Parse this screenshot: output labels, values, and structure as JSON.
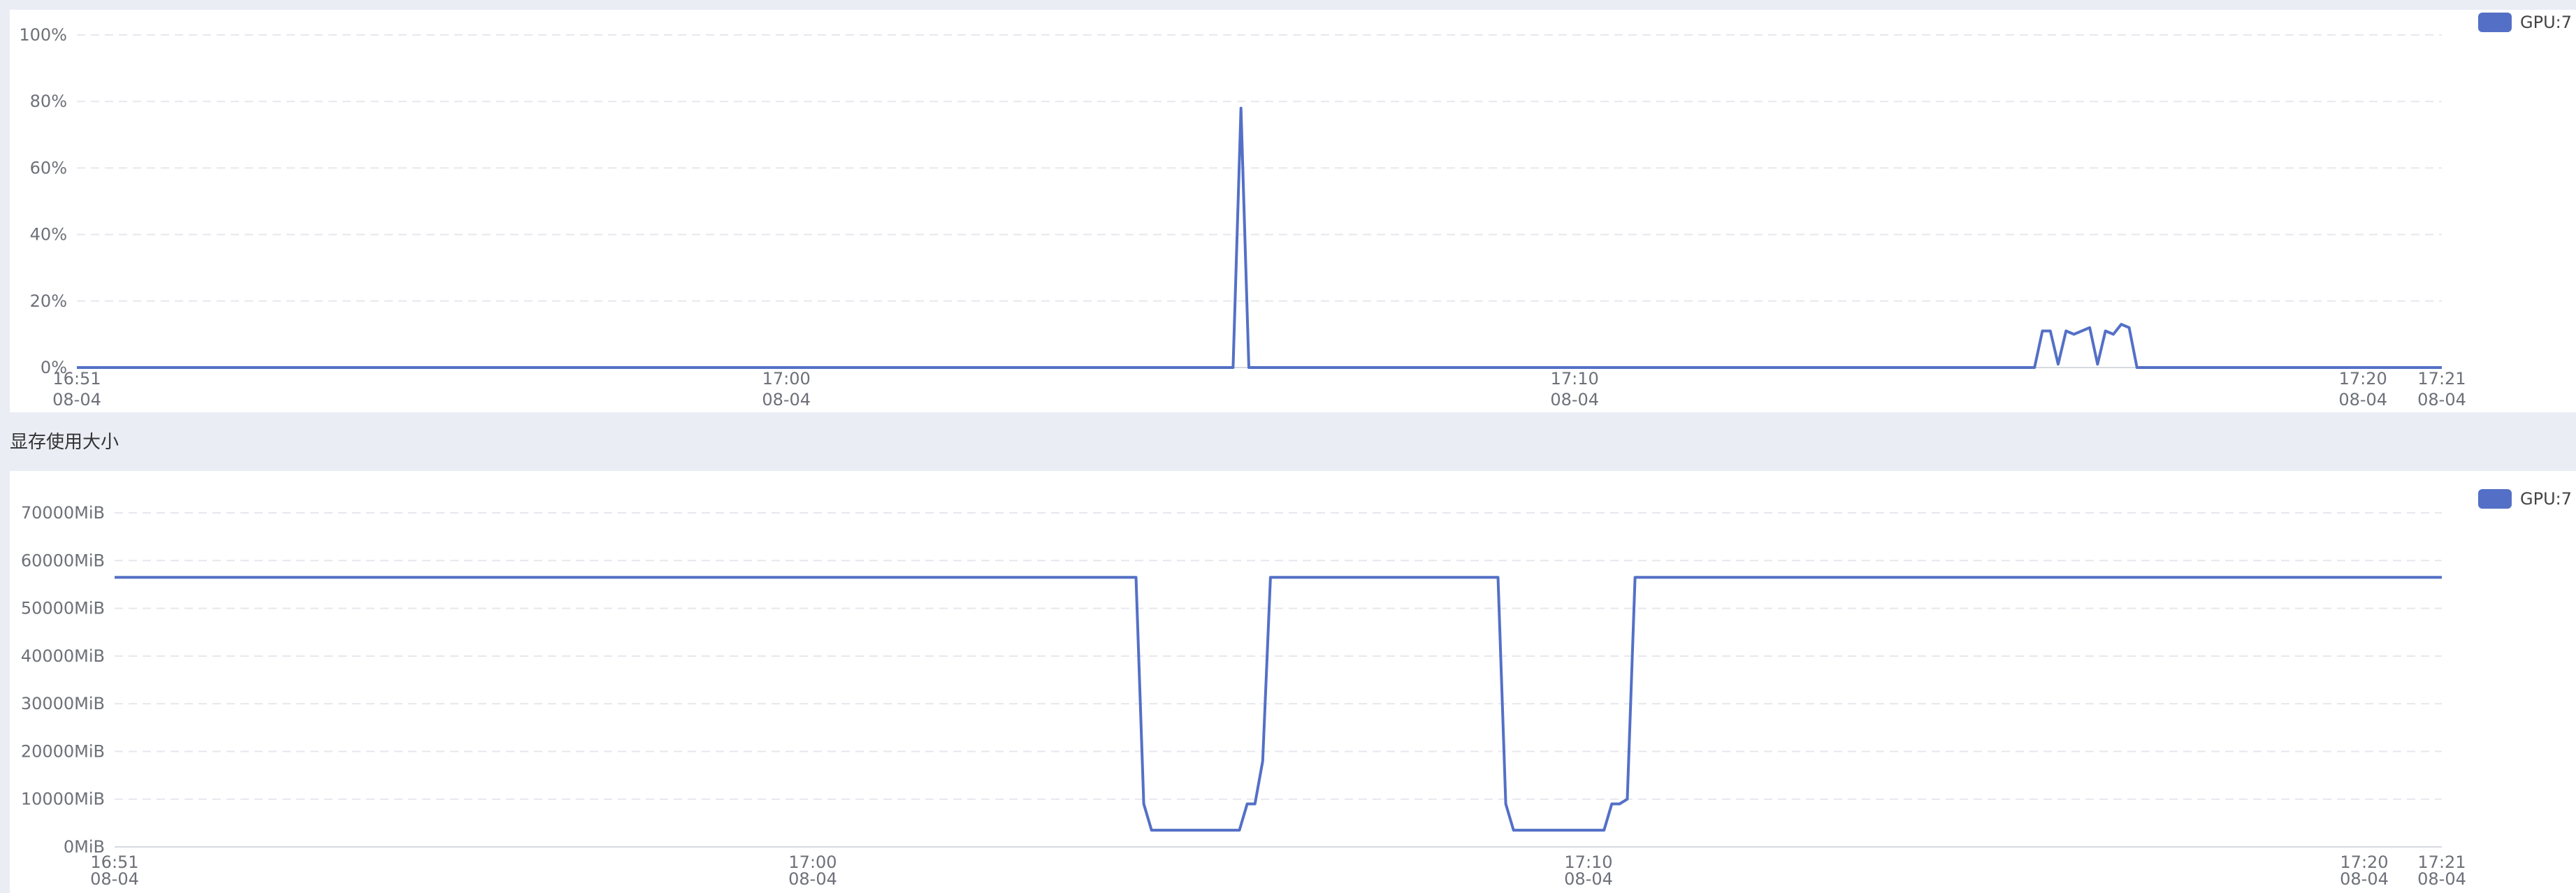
{
  "section_title": "显存使用大小",
  "chart_data": [
    {
      "type": "line",
      "yticks": [
        "0%",
        "20%",
        "40%",
        "60%",
        "80%",
        "100%"
      ],
      "ylim": [
        0,
        100
      ],
      "xlim": [
        "16:51",
        "17:21"
      ],
      "xticks": [
        {
          "time": "16:51",
          "date": "08-04"
        },
        {
          "time": "17:00",
          "date": "08-04"
        },
        {
          "time": "17:10",
          "date": "08-04"
        },
        {
          "time": "17:20",
          "date": "08-04"
        },
        {
          "time": "17:21",
          "date": "08-04"
        }
      ],
      "grid": true,
      "legend_position": "top-right",
      "series": [
        {
          "name": "GPU:7",
          "color": "#5470c6",
          "points": [
            [
              "16:51:00",
              0
            ],
            [
              "17:05:40",
              0
            ],
            [
              "17:05:46",
              78
            ],
            [
              "17:05:52",
              0
            ],
            [
              "17:15:50",
              0
            ],
            [
              "17:15:56",
              11
            ],
            [
              "17:16:02",
              11
            ],
            [
              "17:16:08",
              1
            ],
            [
              "17:16:14",
              11
            ],
            [
              "17:16:20",
              10
            ],
            [
              "17:16:26",
              11
            ],
            [
              "17:16:32",
              12
            ],
            [
              "17:16:38",
              1
            ],
            [
              "17:16:44",
              11
            ],
            [
              "17:16:50",
              10
            ],
            [
              "17:16:56",
              13
            ],
            [
              "17:17:02",
              12
            ],
            [
              "17:17:08",
              0
            ],
            [
              "17:21:00",
              0
            ]
          ]
        }
      ]
    },
    {
      "type": "line",
      "yticks": [
        "0MiB",
        "10000MiB",
        "20000MiB",
        "30000MiB",
        "40000MiB",
        "50000MiB",
        "60000MiB",
        "70000MiB"
      ],
      "ylim": [
        0,
        70000
      ],
      "xlim": [
        "16:51",
        "17:21"
      ],
      "xticks": [
        {
          "time": "16:51",
          "date": "08-04"
        },
        {
          "time": "17:00",
          "date": "08-04"
        },
        {
          "time": "17:10",
          "date": "08-04"
        },
        {
          "time": "17:20",
          "date": "08-04"
        },
        {
          "time": "17:21",
          "date": "08-04"
        }
      ],
      "grid": true,
      "legend_position": "top-right",
      "series": [
        {
          "name": "GPU:7",
          "color": "#5470c6",
          "points": [
            [
              "16:51:00",
              56500
            ],
            [
              "17:04:10",
              56500
            ],
            [
              "17:04:16",
              9000
            ],
            [
              "17:04:22",
              3500
            ],
            [
              "17:05:30",
              3500
            ],
            [
              "17:05:36",
              9000
            ],
            [
              "17:05:42",
              9000
            ],
            [
              "17:05:48",
              18000
            ],
            [
              "17:05:54",
              56500
            ],
            [
              "17:08:50",
              56500
            ],
            [
              "17:08:56",
              9000
            ],
            [
              "17:09:02",
              3500
            ],
            [
              "17:10:12",
              3500
            ],
            [
              "17:10:18",
              9000
            ],
            [
              "17:10:24",
              9000
            ],
            [
              "17:10:30",
              10000
            ],
            [
              "17:10:36",
              56500
            ],
            [
              "17:21:00",
              56500
            ]
          ]
        }
      ]
    }
  ]
}
